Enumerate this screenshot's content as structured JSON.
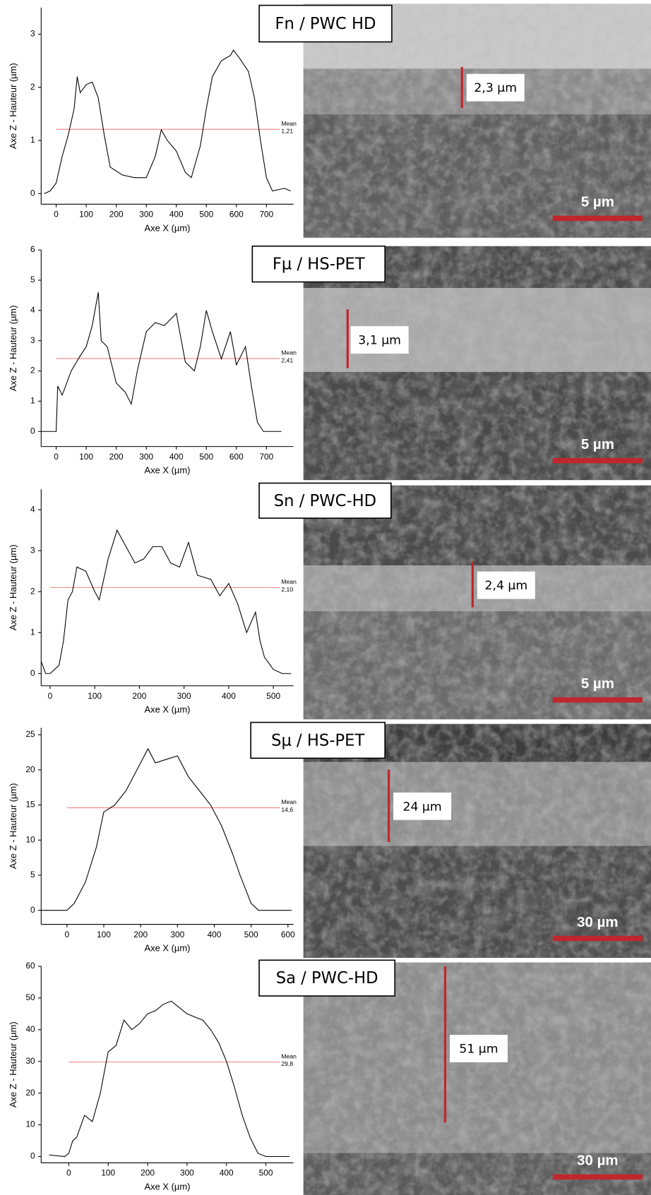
{
  "chart_data": [
    {
      "type": "line",
      "title": "Fn / PWC HD",
      "xlabel": "Axe X (µm)",
      "ylabel": "Axe Z - Hauteur (µm)",
      "color": "#000000",
      "x": [
        -40,
        -20,
        0,
        20,
        40,
        60,
        70,
        80,
        100,
        120,
        140,
        160,
        180,
        220,
        260,
        300,
        330,
        350,
        370,
        400,
        430,
        450,
        480,
        500,
        520,
        550,
        580,
        590,
        610,
        640,
        660,
        680,
        700,
        720,
        760,
        780
      ],
      "values": [
        0,
        0.05,
        0.2,
        0.7,
        1.1,
        1.6,
        2.2,
        1.9,
        2.05,
        2.1,
        1.8,
        1.1,
        0.5,
        0.35,
        0.3,
        0.3,
        0.7,
        1.2,
        1.0,
        0.8,
        0.4,
        0.3,
        0.9,
        1.6,
        2.2,
        2.5,
        2.6,
        2.7,
        2.55,
        2.3,
        1.8,
        1.0,
        0.3,
        0.05,
        0.1,
        0.05
      ],
      "xlim": [
        -50,
        790
      ],
      "ylim": [
        -0.2,
        3.5
      ],
      "xticks": [
        0,
        100,
        200,
        300,
        400,
        500,
        600,
        700
      ],
      "yticks": [
        0,
        1,
        2,
        3
      ],
      "mean": 1.21,
      "mean_text": "Mean",
      "mean_label": "1,21",
      "thickness_label": "2,3 µm",
      "scale_label": "5 µm"
    },
    {
      "type": "line",
      "title": "Fµ / HS-PET",
      "xlabel": "Axe X (µm)",
      "ylabel": "Axe Z - Hauteur (µm)",
      "color": "#000000",
      "x": [
        -50,
        -20,
        0,
        5,
        20,
        50,
        80,
        100,
        120,
        140,
        150,
        170,
        200,
        230,
        250,
        270,
        300,
        330,
        360,
        400,
        430,
        460,
        480,
        500,
        520,
        550,
        580,
        600,
        630,
        650,
        670,
        690,
        720,
        750
      ],
      "values": [
        0,
        0,
        0,
        1.5,
        1.2,
        2,
        2.5,
        2.8,
        3.5,
        4.6,
        3,
        2.8,
        1.6,
        1.3,
        0.9,
        2.0,
        3.3,
        3.6,
        3.5,
        3.9,
        2.3,
        2.0,
        2.8,
        4.0,
        3.3,
        2.4,
        3.3,
        2.2,
        2.8,
        1.5,
        0.3,
        0,
        0,
        0
      ],
      "xlim": [
        -50,
        790
      ],
      "ylim": [
        -0.5,
        6
      ],
      "xticks": [
        0,
        100,
        200,
        300,
        400,
        500,
        600,
        700
      ],
      "yticks": [
        0,
        1,
        2,
        3,
        4,
        5,
        6
      ],
      "mean": 2.41,
      "mean_text": "Mean",
      "mean_label": "2,41",
      "thickness_label": "3,1 µm",
      "scale_label": "5 µm"
    },
    {
      "type": "line",
      "title": "Sn / PWC-HD",
      "xlabel": "Axe X (µm)",
      "ylabel": "Axe Z - Hauteur (µm)",
      "color": "#000000",
      "x": [
        -20,
        -10,
        0,
        10,
        20,
        30,
        40,
        50,
        60,
        80,
        100,
        110,
        130,
        150,
        170,
        190,
        210,
        230,
        250,
        270,
        290,
        310,
        330,
        360,
        380,
        400,
        420,
        440,
        460,
        470,
        480,
        500,
        520,
        540
      ],
      "values": [
        0.3,
        0,
        0,
        0.1,
        0.2,
        0.8,
        1.8,
        2.0,
        2.6,
        2.5,
        2.0,
        1.8,
        2.8,
        3.5,
        3.1,
        2.7,
        2.8,
        3.1,
        3.1,
        2.7,
        2.6,
        3.2,
        2.4,
        2.3,
        1.9,
        2.2,
        1.7,
        1.0,
        1.5,
        0.8,
        0.4,
        0.1,
        0,
        0
      ],
      "xlim": [
        -20,
        545
      ],
      "ylim": [
        -0.3,
        4.5
      ],
      "xticks": [
        0,
        100,
        200,
        300,
        400,
        500
      ],
      "yticks": [
        0,
        1,
        2,
        3,
        4
      ],
      "mean": 2.1,
      "mean_text": "Mean",
      "mean_label": "2,10",
      "thickness_label": "2,4 µm",
      "scale_label": "5 µm"
    },
    {
      "type": "line",
      "title": "Sµ / HS-PET",
      "xlabel": "Axe X (µm)",
      "ylabel": "Axe Z - Hauteur (µm)",
      "color": "#000000",
      "x": [
        -70,
        0,
        20,
        50,
        80,
        100,
        130,
        160,
        190,
        220,
        240,
        270,
        300,
        330,
        360,
        390,
        420,
        450,
        470,
        500,
        520,
        540,
        580,
        610
      ],
      "values": [
        0,
        0,
        1,
        4,
        9,
        14,
        15,
        17,
        20,
        23,
        21,
        21.5,
        22,
        19,
        17,
        15,
        12,
        8,
        5,
        1,
        0,
        0,
        0,
        0
      ],
      "xlim": [
        -70,
        615
      ],
      "ylim": [
        -2,
        26
      ],
      "xticks": [
        0,
        100,
        200,
        300,
        400,
        500,
        600
      ],
      "yticks": [
        0,
        5,
        10,
        15,
        20,
        25
      ],
      "mean": 14.6,
      "mean_text": "Mean",
      "mean_label": "14,6",
      "thickness_label": "24 µm",
      "scale_label": "30 µm"
    },
    {
      "type": "line",
      "title": "Sa / PWC-HD",
      "xlabel": "Axe X (µm)",
      "ylabel": "Axe Z - Hauteur (µm)",
      "color": "#000000",
      "x": [
        -50,
        -10,
        0,
        10,
        20,
        40,
        60,
        80,
        100,
        120,
        140,
        160,
        180,
        200,
        220,
        240,
        260,
        280,
        300,
        320,
        340,
        360,
        380,
        400,
        420,
        440,
        460,
        480,
        500,
        540,
        560
      ],
      "values": [
        0.5,
        0,
        1,
        5,
        6,
        13,
        11,
        20,
        33,
        35,
        43,
        40,
        42,
        45,
        46,
        48,
        49,
        47,
        45,
        44,
        43,
        40,
        36,
        30,
        22,
        13,
        6,
        1,
        0,
        0,
        0
      ],
      "xlim": [
        -70,
        570
      ],
      "ylim": [
        -2,
        60
      ],
      "xticks": [
        0,
        100,
        200,
        300,
        400,
        500
      ],
      "yticks": [
        0,
        10,
        20,
        30,
        40,
        50,
        60
      ],
      "mean": 29.8,
      "mean_text": "Mean",
      "mean_label": "29,8",
      "thickness_label": "51 µm",
      "scale_label": "30 µm"
    }
  ]
}
